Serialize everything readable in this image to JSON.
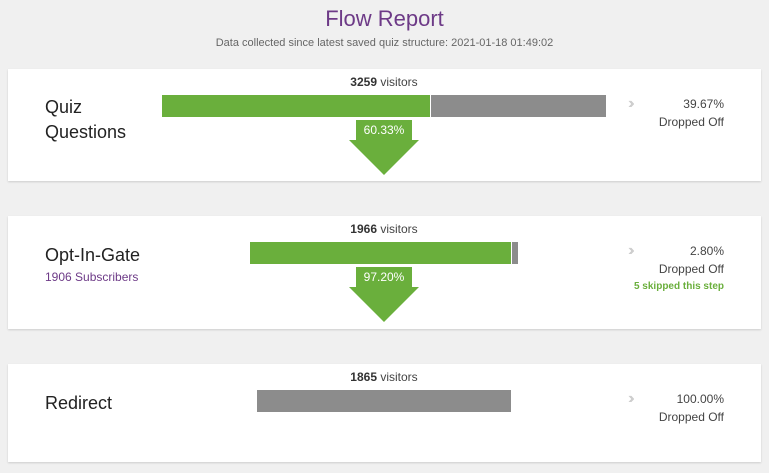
{
  "header": {
    "title": "Flow Report",
    "subtitle": "Data collected since latest saved quiz structure: 2021-01-18 01:49:02"
  },
  "steps": [
    {
      "name": "Quiz Questions",
      "visitors": 3259,
      "visitors_label": "visitors",
      "passed_pct": 60.33,
      "passed_label": "60.33%",
      "dropped_pct": 39.67,
      "dropped_label": "39.67%",
      "dropped_text": "Dropped Off"
    },
    {
      "name": "Opt-In-Gate",
      "subscribers": "1906 Subscribers",
      "visitors": 1966,
      "visitors_label": "visitors",
      "passed_pct": 97.2,
      "passed_label": "97.20%",
      "dropped_pct": 2.8,
      "dropped_label": "2.80%",
      "dropped_text": "Dropped Off",
      "skipped": "5 skipped this step"
    },
    {
      "name": "Redirect",
      "visitors": 1865,
      "visitors_label": "visitors",
      "dropped_pct": 100.0,
      "dropped_label": "100.00%",
      "dropped_text": "Dropped Off"
    }
  ]
}
